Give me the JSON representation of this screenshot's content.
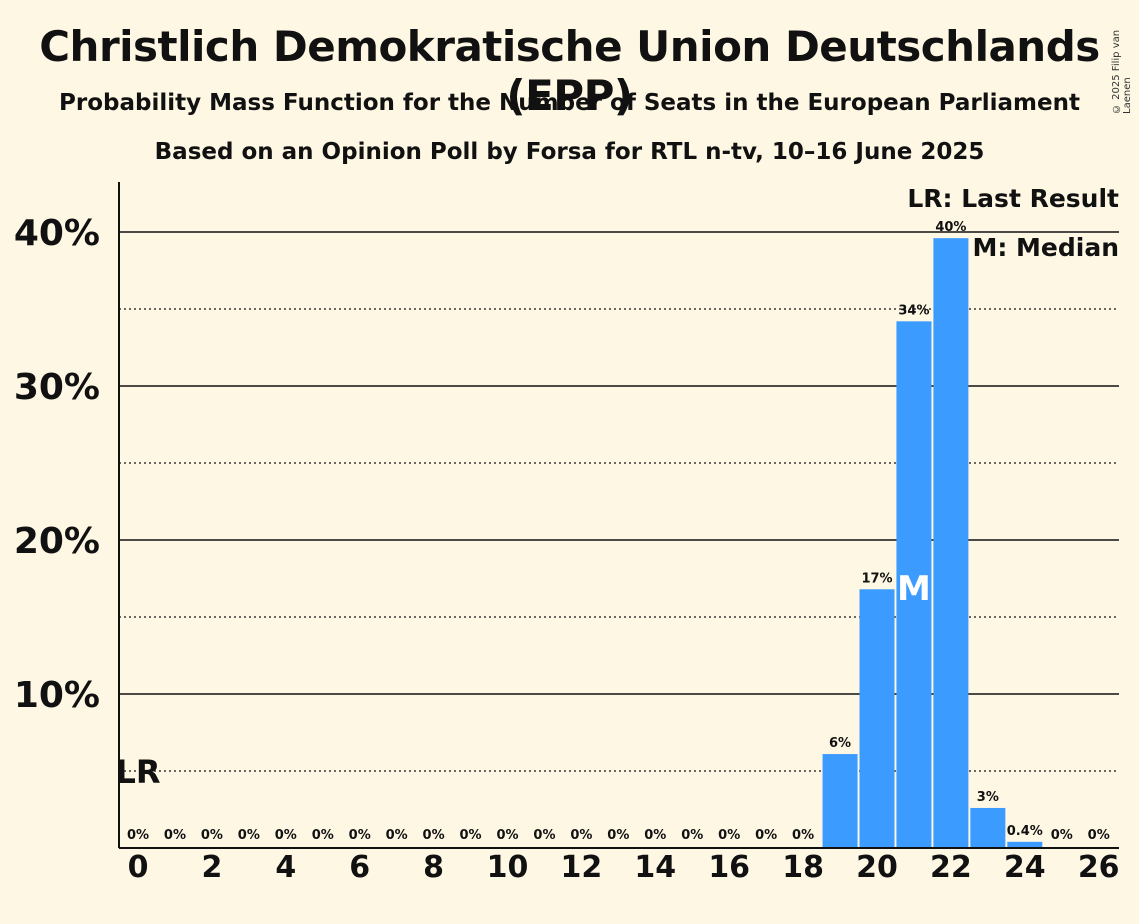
{
  "header": {
    "title": "Christlich Demokratische Union Deutschlands (EPP)",
    "subtitle1": "Probability Mass Function for the Number of Seats in the European Parliament",
    "subtitle2": "Based on an Opinion Poll by Forsa for RTL n-tv, 10–16 June 2025",
    "copyright": "© 2025 Filip van Laenen"
  },
  "legend": {
    "last_result": "LR: Last Result",
    "median": "M: Median"
  },
  "colors": {
    "bar": "#3c9bff",
    "background": "#fdf7e4"
  },
  "chart_data": {
    "type": "bar",
    "x": [
      0,
      1,
      2,
      3,
      4,
      5,
      6,
      7,
      8,
      9,
      10,
      11,
      12,
      13,
      14,
      15,
      16,
      17,
      18,
      19,
      20,
      21,
      22,
      23,
      24,
      25,
      26
    ],
    "values": [
      0,
      0,
      0,
      0,
      0,
      0,
      0,
      0,
      0,
      0,
      0,
      0,
      0,
      0,
      0,
      0,
      0,
      0,
      0,
      6.1,
      16.8,
      34.2,
      39.6,
      2.6,
      0.4,
      0,
      0
    ],
    "data_labels": [
      "0%",
      "0%",
      "0%",
      "0%",
      "0%",
      "0%",
      "0%",
      "0%",
      "0%",
      "0%",
      "0%",
      "0%",
      "0%",
      "0%",
      "0%",
      "0%",
      "0%",
      "0%",
      "0%",
      "6%",
      "17%",
      "34%",
      "40%",
      "3%",
      "0.4%",
      "0%",
      "0%"
    ],
    "x_tick_labels": [
      "0",
      "2",
      "4",
      "6",
      "8",
      "10",
      "12",
      "14",
      "16",
      "18",
      "20",
      "22",
      "24",
      "26"
    ],
    "y_tick_labels": [
      "10%",
      "20%",
      "30%",
      "40%"
    ],
    "ylim": [
      0,
      43
    ],
    "major_gridlines": [
      10,
      20,
      30,
      40
    ],
    "minor_gridlines": [
      5,
      15,
      25,
      35
    ],
    "last_result": {
      "seat": 0,
      "label": "LR"
    },
    "median": {
      "seat": 21,
      "label": "M"
    }
  }
}
